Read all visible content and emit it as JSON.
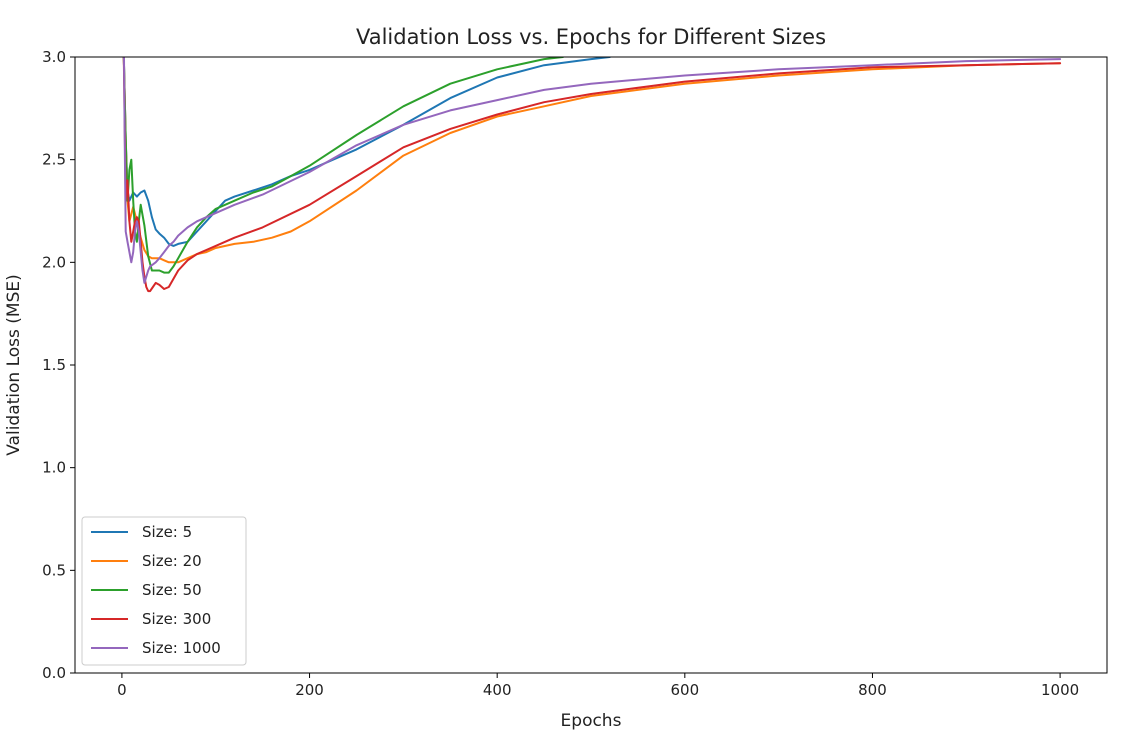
{
  "chart_data": {
    "type": "line",
    "title": "Validation Loss vs. Epochs for Different Sizes",
    "xlabel": "Epochs",
    "ylabel": "Validation Loss (MSE)",
    "xlim": [
      -50,
      1050
    ],
    "ylim": [
      0.0,
      3.0
    ],
    "xticks": [
      0,
      200,
      400,
      600,
      800,
      1000
    ],
    "xtick_labels": [
      "0",
      "200",
      "400",
      "600",
      "800",
      "1000"
    ],
    "yticks": [
      0.0,
      0.5,
      1.0,
      1.5,
      2.0,
      2.5,
      3.0
    ],
    "ytick_labels": [
      "0.0",
      "0.5",
      "1.0",
      "1.5",
      "2.0",
      "2.5",
      "3.0"
    ],
    "grid": false,
    "legend_position": "lower-left",
    "series": [
      {
        "name": "Size: 5",
        "color": "#1f77b4",
        "x": [
          0,
          2,
          4,
          6,
          8,
          12,
          16,
          20,
          24,
          28,
          32,
          36,
          40,
          45,
          50,
          55,
          60,
          70,
          80,
          90,
          100,
          110,
          120,
          140,
          160,
          180,
          200,
          250,
          300,
          350,
          400,
          450,
          500,
          520
        ],
        "y": [
          3.5,
          3.0,
          2.6,
          2.35,
          2.3,
          2.34,
          2.32,
          2.34,
          2.35,
          2.3,
          2.22,
          2.16,
          2.14,
          2.12,
          2.09,
          2.08,
          2.09,
          2.1,
          2.15,
          2.2,
          2.25,
          2.3,
          2.32,
          2.35,
          2.38,
          2.42,
          2.45,
          2.55,
          2.67,
          2.8,
          2.9,
          2.96,
          2.99,
          3.0
        ]
      },
      {
        "name": "Size: 20",
        "color": "#ff7f0e",
        "x": [
          0,
          2,
          4,
          6,
          8,
          12,
          16,
          20,
          24,
          28,
          32,
          36,
          40,
          45,
          50,
          55,
          60,
          70,
          80,
          90,
          100,
          120,
          140,
          160,
          180,
          200,
          250,
          300,
          350,
          400,
          450,
          500,
          600,
          700,
          800,
          900,
          1000
        ],
        "y": [
          3.5,
          3.0,
          2.6,
          2.3,
          2.2,
          2.27,
          2.2,
          2.12,
          2.06,
          2.03,
          2.02,
          2.02,
          2.02,
          2.01,
          2.0,
          2.0,
          2.0,
          2.02,
          2.04,
          2.05,
          2.07,
          2.09,
          2.1,
          2.12,
          2.15,
          2.2,
          2.35,
          2.52,
          2.63,
          2.71,
          2.76,
          2.81,
          2.87,
          2.91,
          2.94,
          2.96,
          2.97
        ]
      },
      {
        "name": "Size: 50",
        "color": "#2ca02c",
        "x": [
          0,
          2,
          4,
          6,
          8,
          10,
          12,
          14,
          16,
          18,
          20,
          24,
          28,
          32,
          36,
          40,
          45,
          50,
          55,
          60,
          70,
          80,
          90,
          100,
          120,
          140,
          160,
          180,
          200,
          250,
          300,
          350,
          400,
          450,
          470
        ],
        "y": [
          3.5,
          3.0,
          2.6,
          2.3,
          2.45,
          2.5,
          2.3,
          2.15,
          2.1,
          2.2,
          2.28,
          2.18,
          2.03,
          1.96,
          1.96,
          1.96,
          1.95,
          1.95,
          1.98,
          2.02,
          2.1,
          2.17,
          2.22,
          2.26,
          2.3,
          2.34,
          2.37,
          2.42,
          2.47,
          2.62,
          2.76,
          2.87,
          2.94,
          2.99,
          3.0
        ]
      },
      {
        "name": "Size: 300",
        "color": "#d62728",
        "x": [
          0,
          2,
          4,
          6,
          8,
          10,
          12,
          14,
          16,
          18,
          20,
          22,
          24,
          26,
          28,
          30,
          33,
          36,
          40,
          45,
          50,
          55,
          60,
          70,
          80,
          90,
          100,
          120,
          150,
          200,
          250,
          300,
          350,
          400,
          450,
          500,
          600,
          700,
          800,
          900,
          1000
        ],
        "y": [
          3.5,
          3.0,
          2.3,
          2.4,
          2.2,
          2.1,
          2.15,
          2.2,
          2.22,
          2.2,
          2.1,
          2.0,
          1.93,
          1.88,
          1.86,
          1.86,
          1.88,
          1.9,
          1.89,
          1.87,
          1.88,
          1.92,
          1.96,
          2.01,
          2.04,
          2.06,
          2.08,
          2.12,
          2.17,
          2.28,
          2.42,
          2.56,
          2.65,
          2.72,
          2.78,
          2.82,
          2.88,
          2.92,
          2.95,
          2.96,
          2.97
        ]
      },
      {
        "name": "Size: 1000",
        "color": "#9467bd",
        "x": [
          0,
          2,
          3,
          4,
          6,
          8,
          10,
          12,
          14,
          16,
          18,
          20,
          22,
          24,
          26,
          28,
          30,
          33,
          36,
          40,
          45,
          50,
          55,
          60,
          70,
          80,
          90,
          100,
          120,
          150,
          200,
          250,
          300,
          350,
          400,
          450,
          500,
          600,
          700,
          800,
          900,
          1000
        ],
        "y": [
          3.5,
          3.1,
          2.6,
          2.15,
          2.1,
          2.05,
          2.0,
          2.05,
          2.15,
          2.2,
          2.15,
          2.05,
          1.96,
          1.9,
          1.93,
          1.96,
          1.98,
          1.99,
          2.0,
          2.02,
          2.05,
          2.08,
          2.1,
          2.13,
          2.17,
          2.2,
          2.22,
          2.24,
          2.28,
          2.33,
          2.44,
          2.57,
          2.67,
          2.74,
          2.79,
          2.84,
          2.87,
          2.91,
          2.94,
          2.96,
          2.98,
          2.99
        ]
      }
    ]
  }
}
